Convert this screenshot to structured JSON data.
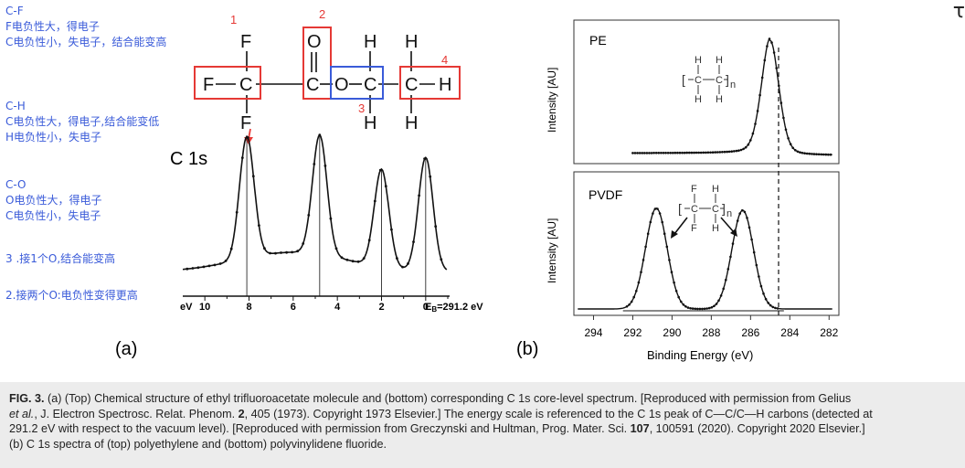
{
  "annotations": {
    "cf_title": "C-F",
    "cf_line1": "F电负性大，得电子",
    "cf_line2": "C电负性小，失电子，结合能变高",
    "ch_title": "C-H",
    "ch_line1": "C电负性大，得电子,结合能变低",
    "ch_line2": "H电负性小，失电子",
    "co_title": "C-O",
    "co_line1": "O电负性大，得电子",
    "co_line2": "C电负性小，失电子",
    "note3": "3 .接1个O,结合能变高",
    "note2": "2.接两个O:电负性变得更高"
  },
  "molecule": {
    "atoms": [
      "F",
      "C",
      "C",
      "O",
      "C",
      "C",
      "H",
      "F",
      "F",
      "O",
      "H",
      "H",
      "H",
      "H"
    ],
    "box_labels": [
      "1",
      "2",
      "3",
      "4"
    ],
    "red_color": "#e53935",
    "blue_color": "#3a5bd9"
  },
  "panel_a": {
    "label": "(a)",
    "spectrum_title": "C 1s",
    "axis_unit": "eV",
    "ticks": [
      "10",
      "8",
      "6",
      "4",
      "2",
      "0"
    ],
    "eb_label": "E",
    "eb_sub": "B",
    "eb_value": "=291.2 eV"
  },
  "panel_b": {
    "label": "(b)",
    "top_title": "PE",
    "bottom_title": "PVDF",
    "ylabel": "Intensity [AU]",
    "xlabel": "Binding Energy (eV)",
    "ticks": [
      "294",
      "292",
      "290",
      "288",
      "286",
      "284",
      "282"
    ],
    "pe_struct": {
      "h": "H",
      "c": "C",
      "n": "n"
    },
    "pvdf_struct": {
      "f": "F",
      "h": "H",
      "c": "C",
      "n": "n"
    }
  },
  "chart_data": [
    {
      "type": "line",
      "title": "C 1s",
      "xlabel": "eV",
      "x_reverse": true,
      "xlim": [
        11,
        -1
      ],
      "series": [
        {
          "x": [
            8.1,
            4.8,
            2.0,
            0.0
          ],
          "values": [
            1.0,
            0.98,
            0.8,
            0.93
          ]
        }
      ]
    },
    {
      "type": "line",
      "title": "PE",
      "xlabel": "Binding Energy (eV)",
      "ylabel": "Intensity [AU]",
      "xlim": [
        295,
        281.5
      ],
      "series": [
        {
          "x": [
            285.0
          ],
          "values": [
            1.0
          ]
        }
      ]
    },
    {
      "type": "line",
      "title": "PVDF",
      "xlabel": "Binding Energy (eV)",
      "ylabel": "Intensity [AU]",
      "xlim": [
        295,
        281.5
      ],
      "series": [
        {
          "x": [
            290.8,
            286.4
          ],
          "values": [
            0.95,
            0.93
          ]
        }
      ]
    }
  ],
  "caption": {
    "fig": "FIG. 3.",
    "text1": " (a) (Top) Chemical structure of ethyl trifluoroacetate molecule and (bottom) corresponding C 1s core-level spectrum. [Reproduced with permission from Gelius",
    "text2a": "et al.",
    "text2b": ", J. Electron Spectrosc. Relat. Phenom. ",
    "text2c": "2",
    "text2d": ", 405 (1973). Copyright 1973 Elsevier.] The energy scale is referenced to the C 1s peak of C—C/C—H carbons (detected at",
    "text3a": "291.2 eV with respect to the vacuum level). [Reproduced with permission from Greczynski and Hultman, Prog. Mater. Sci. ",
    "text3b": "107",
    "text3c": ", 100591 (2020). Copyright 2020 Elsevier.]",
    "text4": "(b) C 1s spectra of (top) polyethylene and (bottom) polyvinylidene fluoride."
  },
  "corner": "τ"
}
